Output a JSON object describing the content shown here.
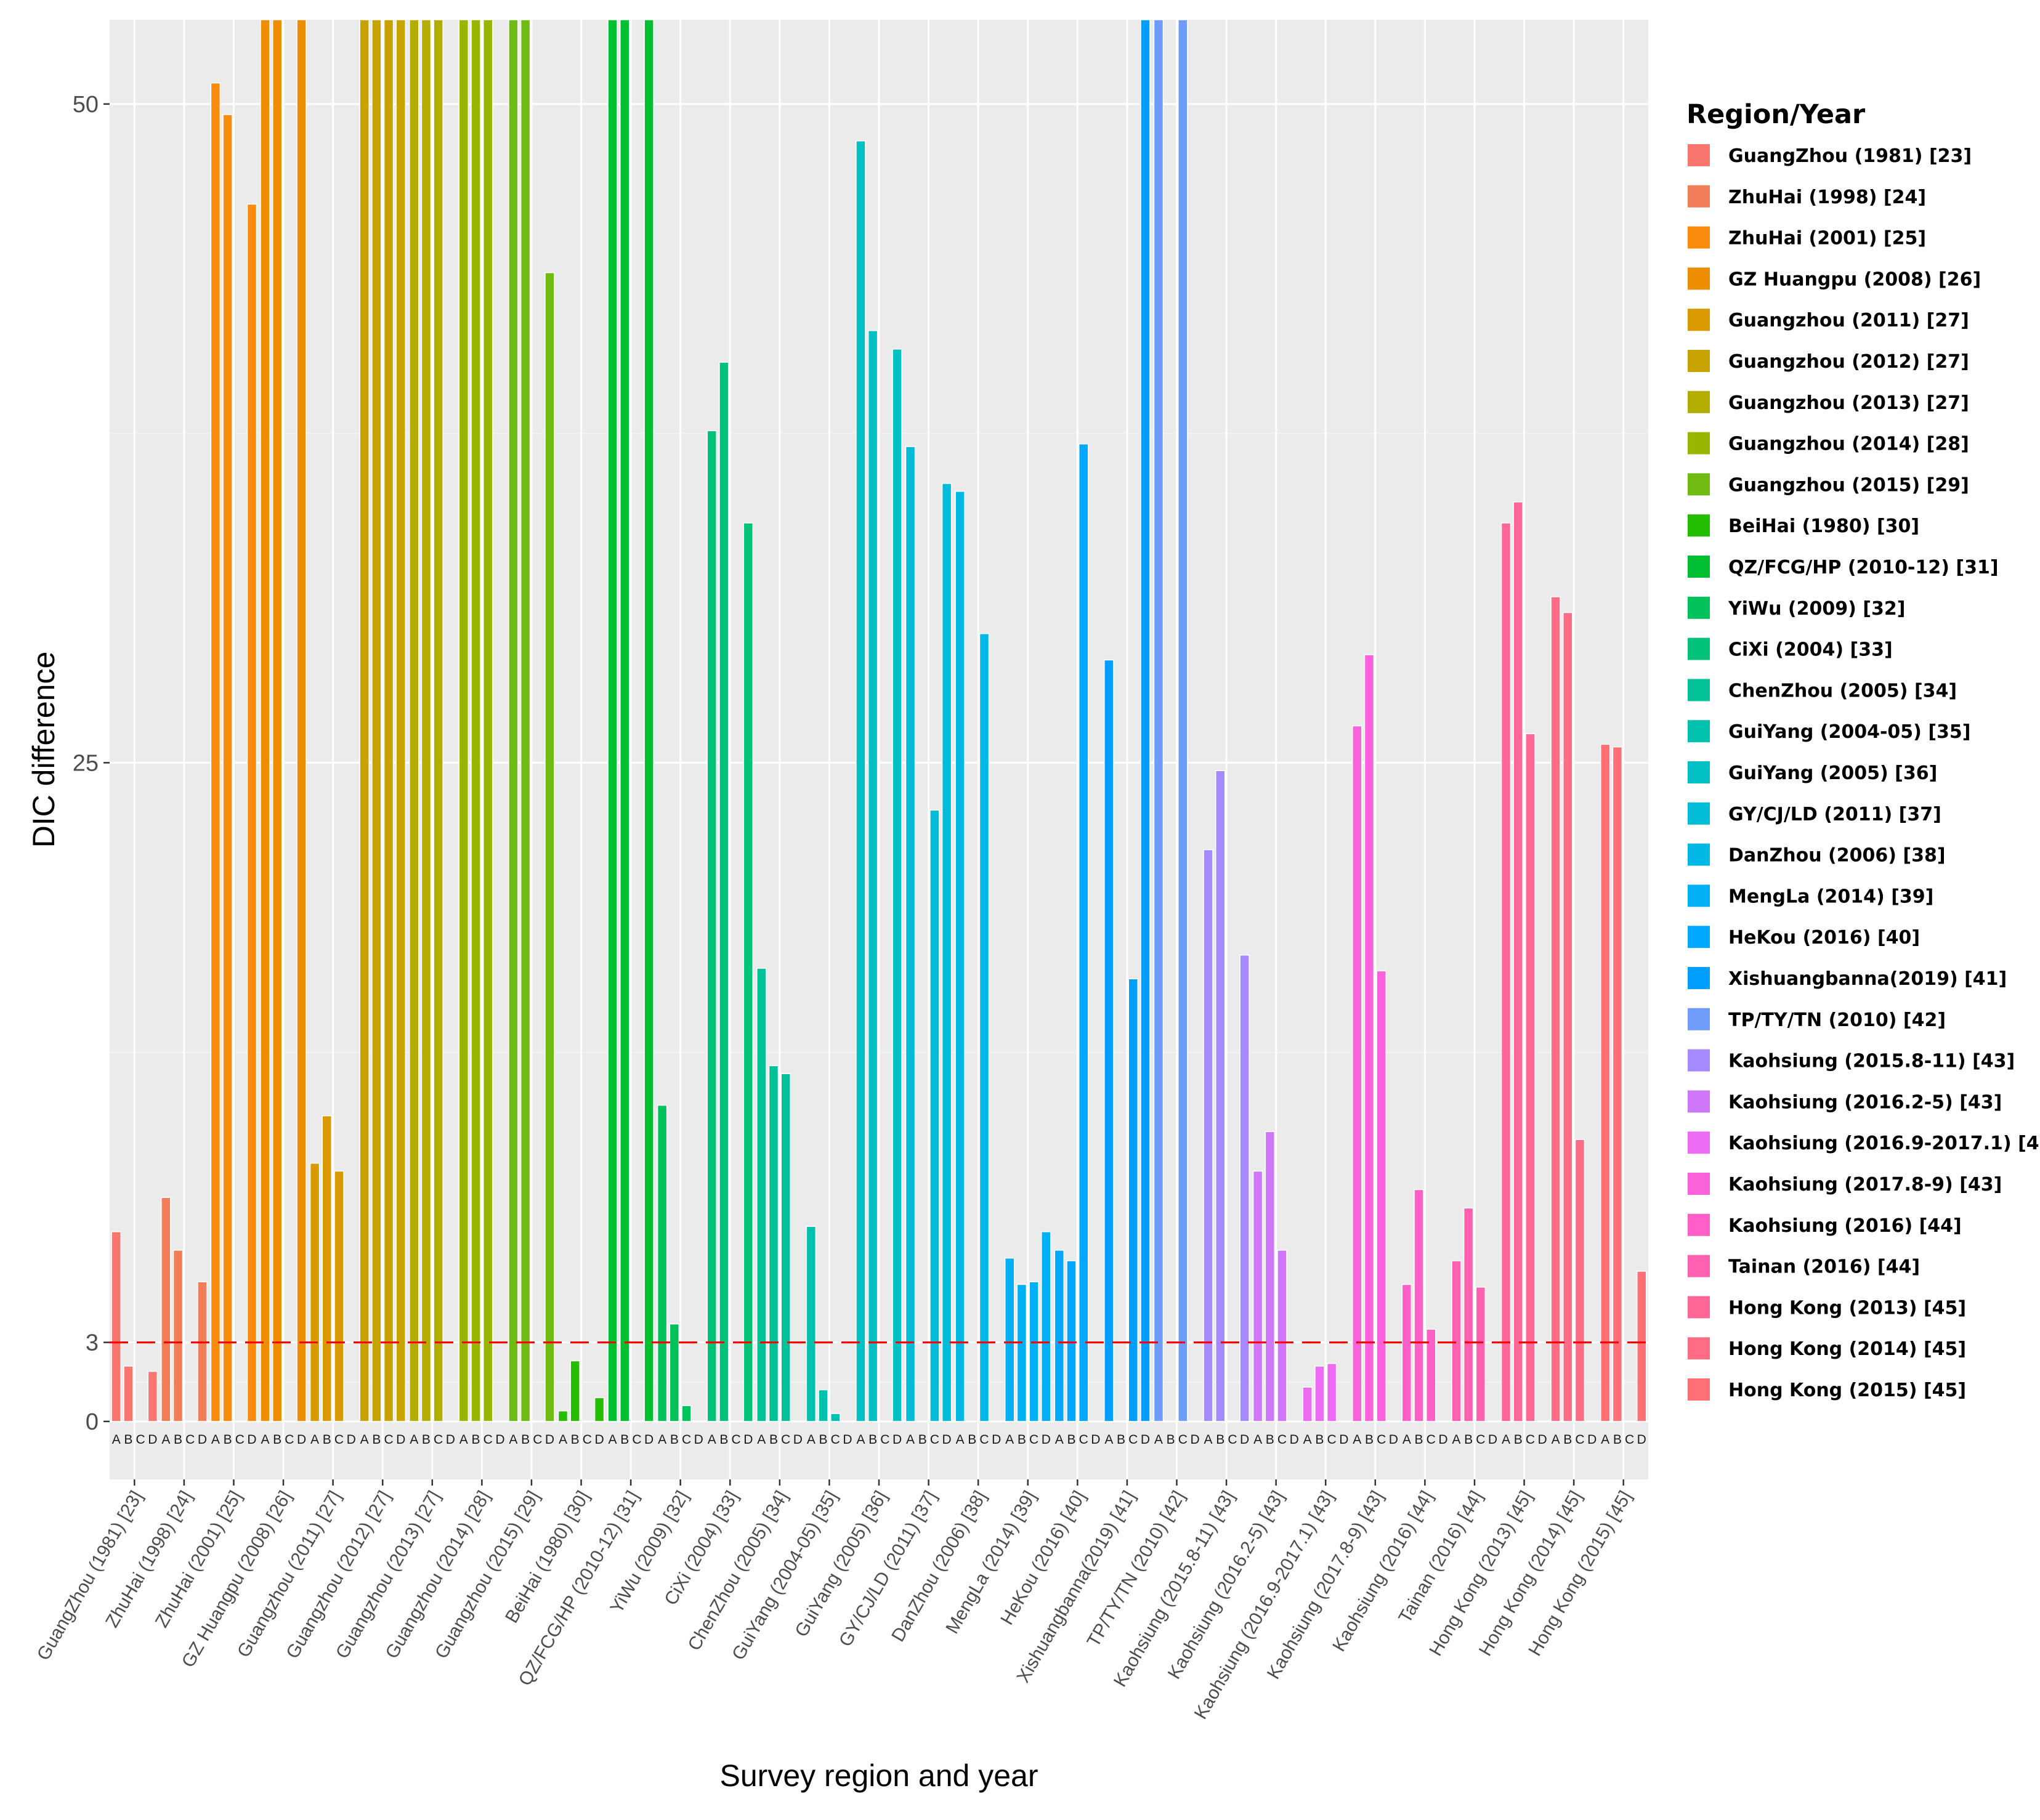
{
  "chart_data": {
    "type": "bar",
    "title": "",
    "xlabel": "Survey region and year",
    "ylabel": "DIC difference",
    "ylim": [
      -2.2,
      53.2
    ],
    "yticks": [
      0,
      3,
      25,
      50
    ],
    "grid": true,
    "legend_title": "Region/Year",
    "legend_position": "right",
    "reference_line": {
      "value": 3,
      "color": "#ff0000",
      "style": "dashed"
    },
    "sub_labels": [
      "A",
      "B",
      "C",
      "D"
    ],
    "categories": [
      "GuangZhou (1981) [23]",
      "ZhuHai (1998) [24]",
      "ZhuHai (2001) [25]",
      "GZ Huangpu (2008) [26]",
      "Guangzhou (2011) [27]",
      "Guangzhou (2012) [27]",
      "Guangzhou (2013) [27]",
      "Guangzhou (2014) [28]",
      "Guangzhou (2015) [29]",
      "BeiHai (1980) [30]",
      "QZ/FCG/HP (2010-12) [31]",
      "YiWu (2009) [32]",
      "CiXi (2004) [33]",
      "ChenZhou (2005) [34]",
      "GuiYang (2004-05) [35]",
      "GuiYang (2005) [36]",
      "GY/CJ/LD (2011) [37]",
      "DanZhou (2006) [38]",
      "MengLa (2014) [39]",
      "HeKou (2016) [40]",
      "Xishuangbanna(2019) [41]",
      "TP/TY/TN (2010) [42]",
      "Kaohsiung (2015.8-11) [43]",
      "Kaohsiung (2016.2-5) [43]",
      "Kaohsiung (2016.9-2017.1) [43]",
      "Kaohsiung (2017.8-9) [43]",
      "Kaohsiung (2016) [44]",
      "Tainan (2016) [44]",
      "Hong Kong (2013) [45]",
      "Hong Kong (2014) [45]",
      "Hong Kong (2015) [45]"
    ],
    "colors": [
      "#F8766D",
      "#F17E58",
      "#F98C0E",
      "#ED8E00",
      "#D89A00",
      "#C8A300",
      "#B2AD00",
      "#98B500",
      "#6FBB11",
      "#25BD00",
      "#00BF32",
      "#00C15A",
      "#00C279",
      "#00C296",
      "#00C1AE",
      "#00C0C3",
      "#00BCD6",
      "#00B8E6",
      "#00B0F5",
      "#00A8FF",
      "#009FFF",
      "#6F9BF9",
      "#A58AFF",
      "#CE78F9",
      "#EC6BF3",
      "#FA62DB",
      "#FF5FC7",
      "#FF61B0",
      "#FF6796",
      "#FF6C86",
      "#FF6F76"
    ],
    "series_values": [
      [
        7.2,
        2.1,
        null,
        1.9
      ],
      [
        8.5,
        6.5,
        null,
        5.3
      ],
      [
        50.8,
        49.6,
        null,
        46.2
      ],
      [
        53.2,
        53.2,
        null,
        53.2
      ],
      [
        9.8,
        11.6,
        9.5,
        null
      ],
      [
        53.2,
        53.2,
        53.2,
        53.2
      ],
      [
        53.2,
        53.2,
        53.2,
        null
      ],
      [
        53.2,
        53.2,
        53.2,
        null
      ],
      [
        53.2,
        53.2,
        null,
        43.6
      ],
      [
        0.4,
        2.3,
        null,
        0.9
      ],
      [
        53.2,
        53.2,
        null,
        53.2
      ],
      [
        12.0,
        3.7,
        0.6,
        null
      ],
      [
        37.6,
        40.2,
        null,
        34.1
      ],
      [
        17.2,
        13.5,
        13.2,
        null
      ],
      [
        7.4,
        1.2,
        0.3,
        null
      ],
      [
        48.6,
        41.4,
        null,
        40.7
      ],
      [
        37.0,
        null,
        23.2,
        35.6
      ],
      [
        35.3,
        null,
        29.9,
        null
      ],
      [
        6.2,
        5.2,
        5.3,
        7.2
      ],
      [
        6.5,
        6.1,
        37.1,
        null
      ],
      [
        28.9,
        null,
        16.8,
        53.2
      ],
      [
        53.2,
        null,
        53.2,
        null
      ],
      [
        21.7,
        24.7,
        null,
        17.7
      ],
      [
        9.5,
        11.0,
        6.5,
        null
      ],
      [
        1.3,
        2.1,
        2.2,
        null
      ],
      [
        26.4,
        29.1,
        17.1,
        null
      ],
      [
        5.2,
        8.8,
        3.5,
        null
      ],
      [
        6.1,
        8.1,
        5.1,
        null
      ],
      [
        34.1,
        34.9,
        26.1,
        null
      ],
      [
        31.3,
        30.7,
        10.7,
        null
      ],
      [
        25.7,
        25.6,
        null,
        5.7
      ]
    ]
  }
}
